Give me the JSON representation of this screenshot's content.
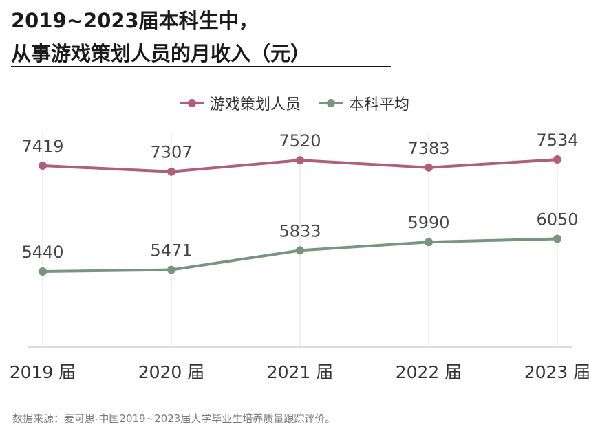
{
  "title_lines": [
    "2019~2023届本科生中，",
    "从事游戏策划人员的月收入（元）"
  ],
  "source": "数据来源：麦可思-中国2019~2023届大学毕业生培养质量跟踪评价。",
  "colors": {
    "game_planner": "#b05f78",
    "undergrad_avg": "#78957d",
    "grid": "#e2e2e2",
    "axis": "#c8c8c8",
    "label": "#444444"
  },
  "chart_data": {
    "type": "line",
    "categories": [
      "2019 届",
      "2020 届",
      "2021 届",
      "2022 届",
      "2023 届"
    ],
    "series": [
      {
        "name": "游戏策划人员",
        "values": [
          7419,
          7307,
          7520,
          7383,
          7534
        ],
        "color": "#b05f78"
      },
      {
        "name": "本科平均",
        "values": [
          5440,
          5471,
          5833,
          5990,
          6050
        ],
        "color": "#78957d"
      }
    ],
    "legend_position": "top-center",
    "grid": "vertical",
    "data_labels": true
  }
}
